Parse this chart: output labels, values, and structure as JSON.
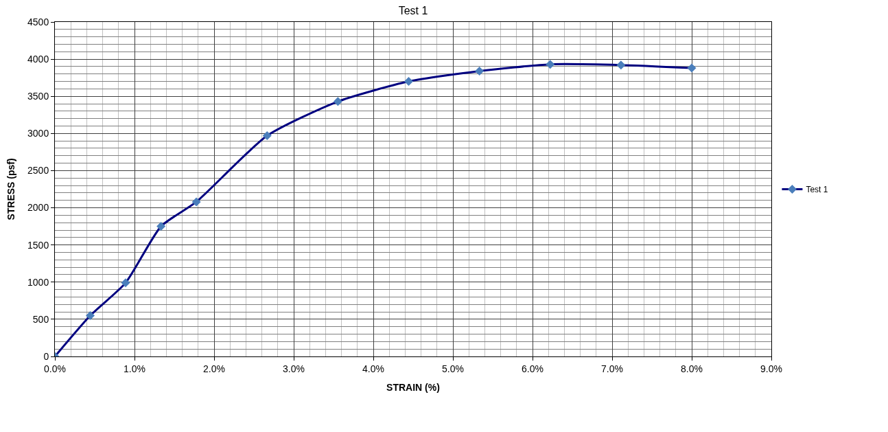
{
  "chart_data": {
    "type": "line",
    "title": "Test 1",
    "xlabel": "STRAIN (%)",
    "ylabel": "STRESS (psf)",
    "x": [
      0,
      0.444,
      0.888,
      1.333,
      1.777,
      2.666,
      3.555,
      4.444,
      5.333,
      6.222,
      7.111,
      8.0
    ],
    "series": [
      {
        "name": "Test 1",
        "color": "#000080",
        "colors": [
          "#4a7ebb",
          "#4a7ebb",
          "#4a7ebb",
          "#4a7ebb",
          "#4a7ebb",
          "#4a7ebb",
          "#4a7ebb",
          "#4a7ebb",
          "#4a7ebb",
          "#4a7ebb",
          "#4a7ebb",
          "#4a7ebb"
        ],
        "values": [
          0,
          550,
          990,
          1750,
          2080,
          2970,
          3430,
          3700,
          3840,
          3930,
          3920,
          3880
        ]
      }
    ],
    "xlim": [
      0,
      9
    ],
    "xticks": [
      {
        "value": 0,
        "label": "0.0%"
      },
      {
        "value": 1,
        "label": "1.0%"
      },
      {
        "value": 2,
        "label": "2.0%"
      },
      {
        "value": 3,
        "label": "3.0%"
      },
      {
        "value": 4,
        "label": "4.0%"
      },
      {
        "value": 5,
        "label": "5.0%"
      },
      {
        "value": 6,
        "label": "6.0%"
      },
      {
        "value": 7,
        "label": "7.0%"
      },
      {
        "value": 8,
        "label": "8.0%"
      },
      {
        "value": 9,
        "label": "9.0%"
      }
    ],
    "ylim": [
      0,
      4500
    ],
    "yticks": [
      0,
      500,
      1000,
      1500,
      2000,
      2500,
      3000,
      3500,
      4000,
      4500
    ],
    "grid": true,
    "legend": "right",
    "marker": "diamond",
    "line_style": "solid"
  }
}
